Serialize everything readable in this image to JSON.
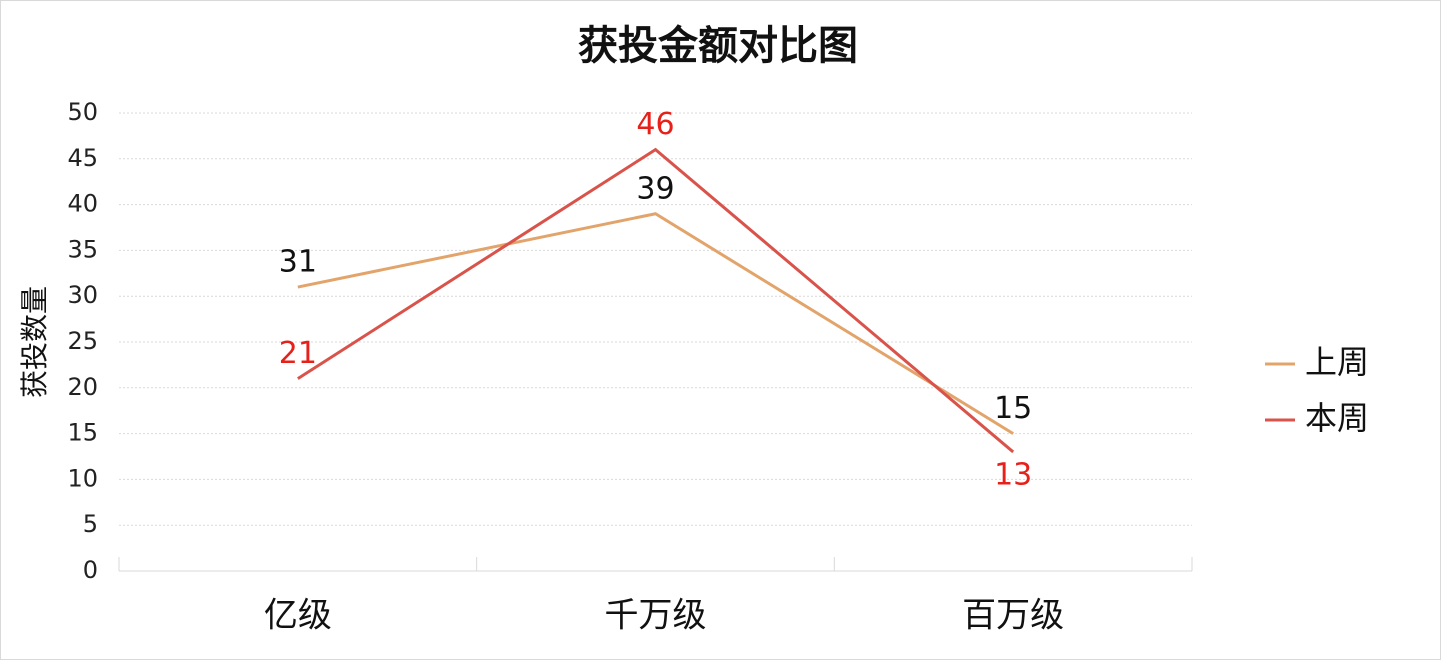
{
  "chart_data": {
    "type": "line",
    "title": "获投金额对比图",
    "y_label": "获投数量",
    "categories": [
      "亿级",
      "千万级",
      "百万级"
    ],
    "series": [
      {
        "name": "上周",
        "color": "#e2a46a",
        "label_color": "#111111",
        "values": [
          31,
          39,
          15
        ]
      },
      {
        "name": "本周",
        "color": "#d9534a",
        "label_color": "#e8201a",
        "values": [
          21,
          46,
          13
        ]
      }
    ],
    "ylim": [
      0,
      50
    ],
    "yticks": [
      0,
      5,
      10,
      15,
      20,
      25,
      30,
      35,
      40,
      45,
      50
    ],
    "grid": true,
    "legend": "right"
  }
}
